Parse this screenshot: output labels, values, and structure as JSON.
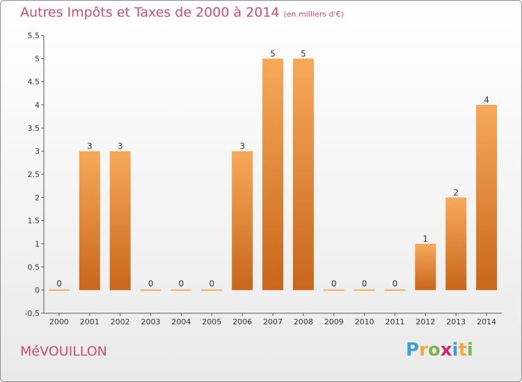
{
  "chart_data": {
    "type": "bar",
    "title": "Autres Impôts et Taxes de 2000 à 2014",
    "subtitle": "(en milliers d'€)",
    "categories": [
      "2000",
      "2001",
      "2002",
      "2003",
      "2004",
      "2005",
      "2006",
      "2007",
      "2008",
      "2009",
      "2010",
      "2011",
      "2012",
      "2013",
      "2014"
    ],
    "values": [
      0,
      3,
      3,
      0,
      0,
      0,
      3,
      5,
      5,
      0,
      0,
      0,
      1,
      2,
      4
    ],
    "data_labels": [
      "0",
      "3",
      "3",
      "0",
      "0",
      "0",
      "3",
      "5",
      "5",
      "0",
      "0",
      "0",
      "1",
      "2",
      "4"
    ],
    "ylim": [
      -0.5,
      5.5
    ],
    "yticks": [
      "-0,5",
      "0",
      "0.5",
      "1",
      "1.5",
      "2",
      "2.5",
      "3",
      "3.5",
      "4",
      "4.5",
      "5",
      "5.5"
    ],
    "ytick_values": [
      -0.5,
      0,
      0.5,
      1,
      1.5,
      2,
      2.5,
      3,
      3.5,
      4,
      4.5,
      5,
      5.5
    ],
    "grid": false,
    "bar_color_top": "#f7a95a",
    "bar_color_bottom": "#c8661b"
  },
  "commune": "MéVOUILLON",
  "logo": {
    "letters": [
      "P",
      "r",
      "o",
      "x",
      "i",
      "t",
      "i"
    ],
    "colors": [
      "#3aa0d8",
      "#f2a73b",
      "#7ab648",
      "#d0267a",
      "#3aa0d8",
      "#f2a73b",
      "#7ab648"
    ]
  }
}
